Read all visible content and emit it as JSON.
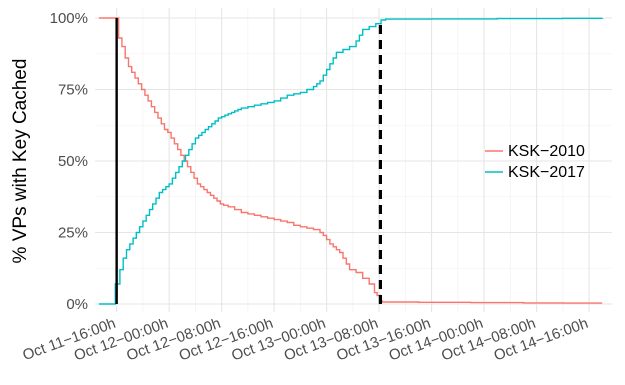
{
  "chart_data": {
    "type": "line",
    "step": true,
    "ylabel": "% VPs with Key Cached",
    "xlabel": "",
    "ylim": [
      0,
      100
    ],
    "xlim_hours": [
      -3.3,
      75.5
    ],
    "y_ticks": [
      0,
      25,
      50,
      75,
      100
    ],
    "y_tick_labels": [
      "0%",
      "25%",
      "50%",
      "75%",
      "100%"
    ],
    "x_ticks_hours_since_oct11_1600": [
      0,
      8,
      16,
      24,
      32,
      40,
      48,
      56,
      64,
      72
    ],
    "x_tick_labels": [
      "Oct 11−16:00h",
      "Oct 12−00:00h",
      "Oct 12−08:00h",
      "Oct 12−16:00h",
      "Oct 13−00:00h",
      "Oct 13−08:00h",
      "Oct 13−16:00h",
      "Oct 14−00:00h",
      "Oct 14−08:00h",
      "Oct 14−16:00h"
    ],
    "grid": true,
    "legend_position": "right",
    "series": [
      {
        "name": "KSK−2010",
        "color": "#F8766D",
        "points": [
          [
            -2.7,
            100
          ],
          [
            0,
            100
          ],
          [
            0.3,
            93
          ],
          [
            0.8,
            90
          ],
          [
            1.3,
            86
          ],
          [
            1.8,
            83
          ],
          [
            2.3,
            81
          ],
          [
            2.8,
            79
          ],
          [
            3.3,
            77
          ],
          [
            3.8,
            75
          ],
          [
            4.3,
            73
          ],
          [
            4.8,
            71
          ],
          [
            5.3,
            69
          ],
          [
            5.8,
            67
          ],
          [
            6.3,
            65
          ],
          [
            6.8,
            63
          ],
          [
            7.3,
            61
          ],
          [
            7.8,
            60
          ],
          [
            8.3,
            58
          ],
          [
            8.8,
            56
          ],
          [
            9.3,
            54
          ],
          [
            9.8,
            52
          ],
          [
            10.3,
            50
          ],
          [
            10.8,
            48
          ],
          [
            11.3,
            46
          ],
          [
            11.8,
            44
          ],
          [
            12.3,
            42
          ],
          [
            12.8,
            41
          ],
          [
            13.3,
            40
          ],
          [
            13.8,
            39
          ],
          [
            14.3,
            38
          ],
          [
            14.8,
            37
          ],
          [
            15.3,
            36
          ],
          [
            15.8,
            35
          ],
          [
            16.3,
            34.5
          ],
          [
            17,
            34
          ],
          [
            18,
            33
          ],
          [
            19,
            32
          ],
          [
            20,
            31.5
          ],
          [
            21,
            31
          ],
          [
            22,
            30.5
          ],
          [
            23,
            30
          ],
          [
            24,
            29.5
          ],
          [
            25,
            29
          ],
          [
            26,
            28.5
          ],
          [
            27,
            27.5
          ],
          [
            28,
            27
          ],
          [
            29,
            26.5
          ],
          [
            30,
            26
          ],
          [
            31,
            25
          ],
          [
            31.5,
            24
          ],
          [
            32,
            22.5
          ],
          [
            32.5,
            21
          ],
          [
            33,
            20
          ],
          [
            33.5,
            19
          ],
          [
            34,
            18
          ],
          [
            34.5,
            16
          ],
          [
            35,
            14
          ],
          [
            35.5,
            12
          ],
          [
            36.5,
            11
          ],
          [
            37.5,
            9
          ],
          [
            38.5,
            7
          ],
          [
            39.3,
            4
          ],
          [
            39.7,
            3
          ],
          [
            40.2,
            1
          ],
          [
            40.5,
            0.7
          ],
          [
            46,
            0.6
          ],
          [
            54,
            0.5
          ],
          [
            62,
            0.4
          ],
          [
            68,
            0.3
          ],
          [
            74,
            0.3
          ]
        ]
      },
      {
        "name": "KSK−2017",
        "color": "#00BFC4",
        "points": [
          [
            -2.7,
            0
          ],
          [
            -0.2,
            0
          ],
          [
            -0.2,
            7
          ],
          [
            0.5,
            12
          ],
          [
            1,
            16
          ],
          [
            1.5,
            19
          ],
          [
            2,
            21
          ],
          [
            2.5,
            23
          ],
          [
            3,
            25
          ],
          [
            3.5,
            27
          ],
          [
            4,
            29
          ],
          [
            4.5,
            31
          ],
          [
            5,
            33
          ],
          [
            5.5,
            35
          ],
          [
            6,
            37
          ],
          [
            6.5,
            39
          ],
          [
            7,
            40
          ],
          [
            7.5,
            41
          ],
          [
            8,
            42
          ],
          [
            8.5,
            44
          ],
          [
            9,
            46
          ],
          [
            9.5,
            48
          ],
          [
            10,
            50
          ],
          [
            10.5,
            52
          ],
          [
            11,
            54
          ],
          [
            11.5,
            56
          ],
          [
            12,
            58
          ],
          [
            12.5,
            59
          ],
          [
            13,
            60
          ],
          [
            13.5,
            61
          ],
          [
            14,
            62
          ],
          [
            14.5,
            63
          ],
          [
            15,
            64
          ],
          [
            15.5,
            65
          ],
          [
            16,
            65.5
          ],
          [
            16.5,
            66
          ],
          [
            17,
            66.5
          ],
          [
            17.5,
            67
          ],
          [
            18,
            67.5
          ],
          [
            18.5,
            68
          ],
          [
            19,
            68.5
          ],
          [
            20,
            69
          ],
          [
            21,
            69.5
          ],
          [
            22,
            70
          ],
          [
            23,
            70.5
          ],
          [
            24,
            71
          ],
          [
            25,
            72
          ],
          [
            26,
            73
          ],
          [
            27,
            73.5
          ],
          [
            28,
            74
          ],
          [
            29,
            75
          ],
          [
            30,
            76
          ],
          [
            30.5,
            77
          ],
          [
            31,
            78
          ],
          [
            31.5,
            80
          ],
          [
            32,
            82
          ],
          [
            32.5,
            84
          ],
          [
            33,
            86
          ],
          [
            33.5,
            88
          ],
          [
            34.5,
            89
          ],
          [
            35.5,
            90
          ],
          [
            36.5,
            92
          ],
          [
            37,
            94
          ],
          [
            37.5,
            96
          ],
          [
            38.5,
            97
          ],
          [
            39.5,
            98
          ],
          [
            40.3,
            99.3
          ],
          [
            41,
            99.6
          ],
          [
            48,
            99.7
          ],
          [
            58,
            99.8
          ],
          [
            68,
            99.9
          ],
          [
            74,
            100
          ]
        ]
      }
    ],
    "annotations": [
      {
        "type": "vline",
        "x_hours": 0,
        "style": "solid",
        "color": "#000000",
        "y_range": [
          0,
          100
        ]
      },
      {
        "type": "vline",
        "x_hours": 40.2,
        "style": "dashed",
        "color": "#000000",
        "y_range": [
          0,
          98
        ]
      }
    ]
  }
}
